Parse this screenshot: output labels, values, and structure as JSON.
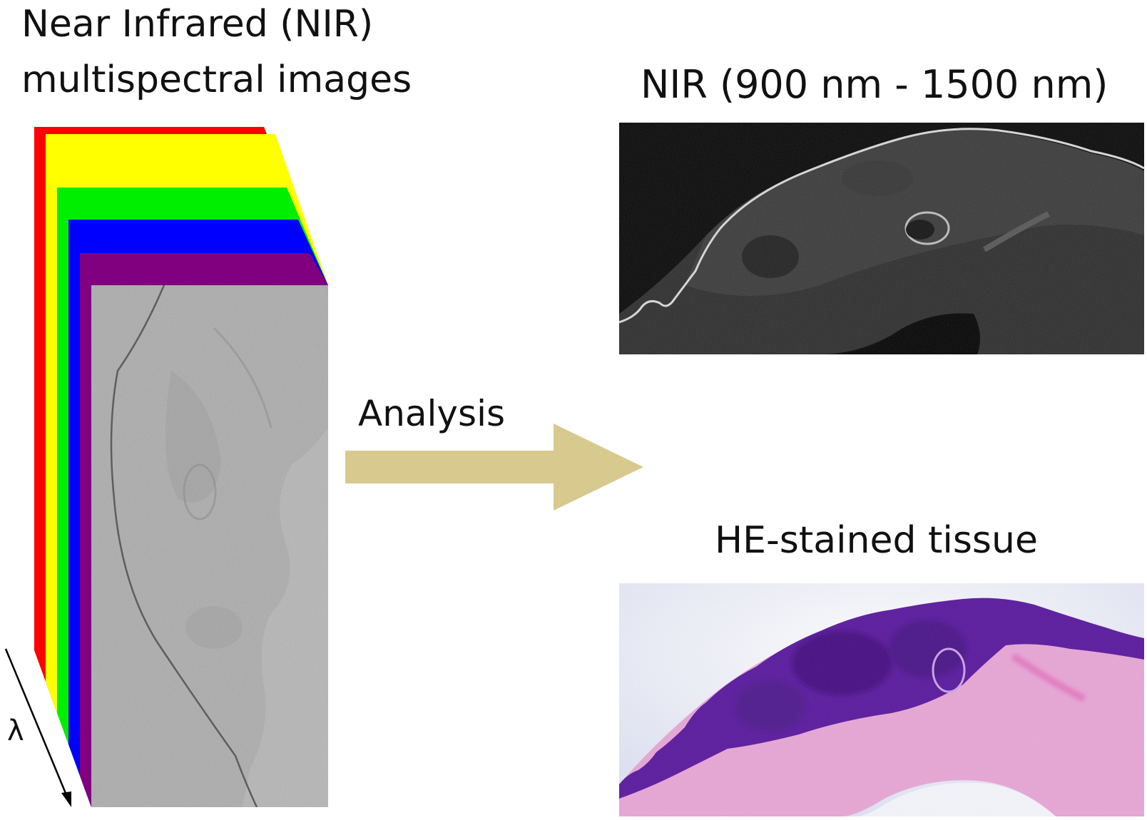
{
  "figure": {
    "stack_title_line1": "Near Infrared (NIR)",
    "stack_title_line2": "multispectral images",
    "nir_panel_title": "NIR (900 nm - 1500 nm)",
    "he_panel_title": "HE-stained tissue",
    "arrow_label": "Analysis",
    "wavelength_symbol": "λ"
  },
  "colors": {
    "layer_red": "#ff0000",
    "layer_yellow": "#ffff00",
    "layer_green": "#00ee00",
    "layer_blue": "#0000ff",
    "layer_purple": "#800080",
    "front_gray": "#b5b5b5",
    "arrow": "#d8c98e",
    "nir_background": "#050505",
    "he_background": "#eceef8",
    "he_tissue_dark": "#5a1a9e",
    "he_tissue_light": "#e7a6d6"
  }
}
